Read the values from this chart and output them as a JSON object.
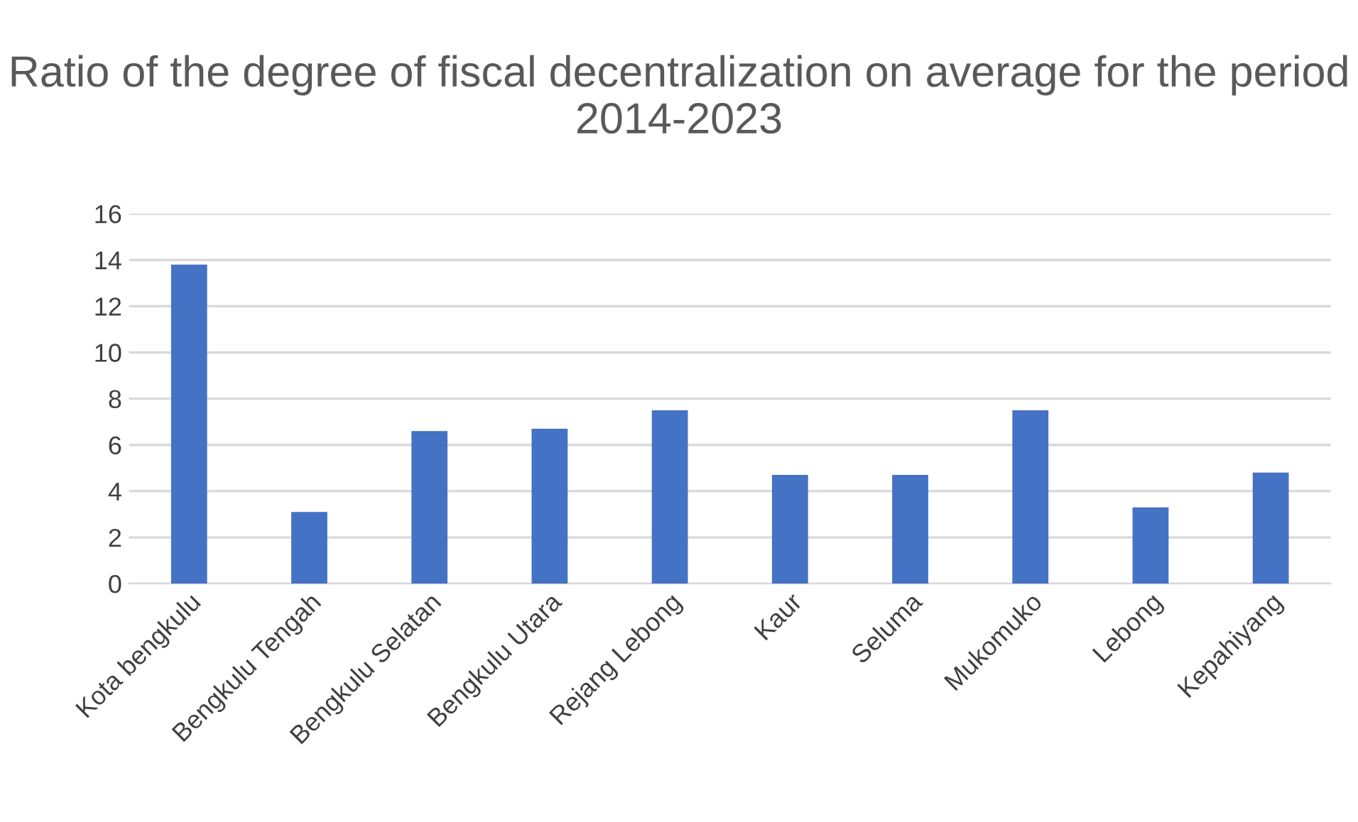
{
  "chart_data": {
    "type": "bar",
    "title": "Ratio of the degree of fiscal decentralization on average for the period 2014-2023",
    "categories": [
      "Kota bengkulu",
      "Bengkulu Tengah",
      "Bengkulu Selatan",
      "Bengkulu Utara",
      "Rejang Lebong",
      "Kaur",
      "Seluma",
      "Mukomuko",
      "Lebong",
      "Kepahiyang"
    ],
    "values": [
      13.8,
      3.1,
      6.6,
      6.7,
      7.5,
      4.7,
      4.7,
      7.5,
      3.3,
      4.8
    ],
    "color": "#4472c4",
    "ylim": [
      0,
      16
    ],
    "yticks": [
      0,
      2,
      4,
      6,
      8,
      10,
      12,
      14,
      16
    ],
    "grid": "y"
  }
}
